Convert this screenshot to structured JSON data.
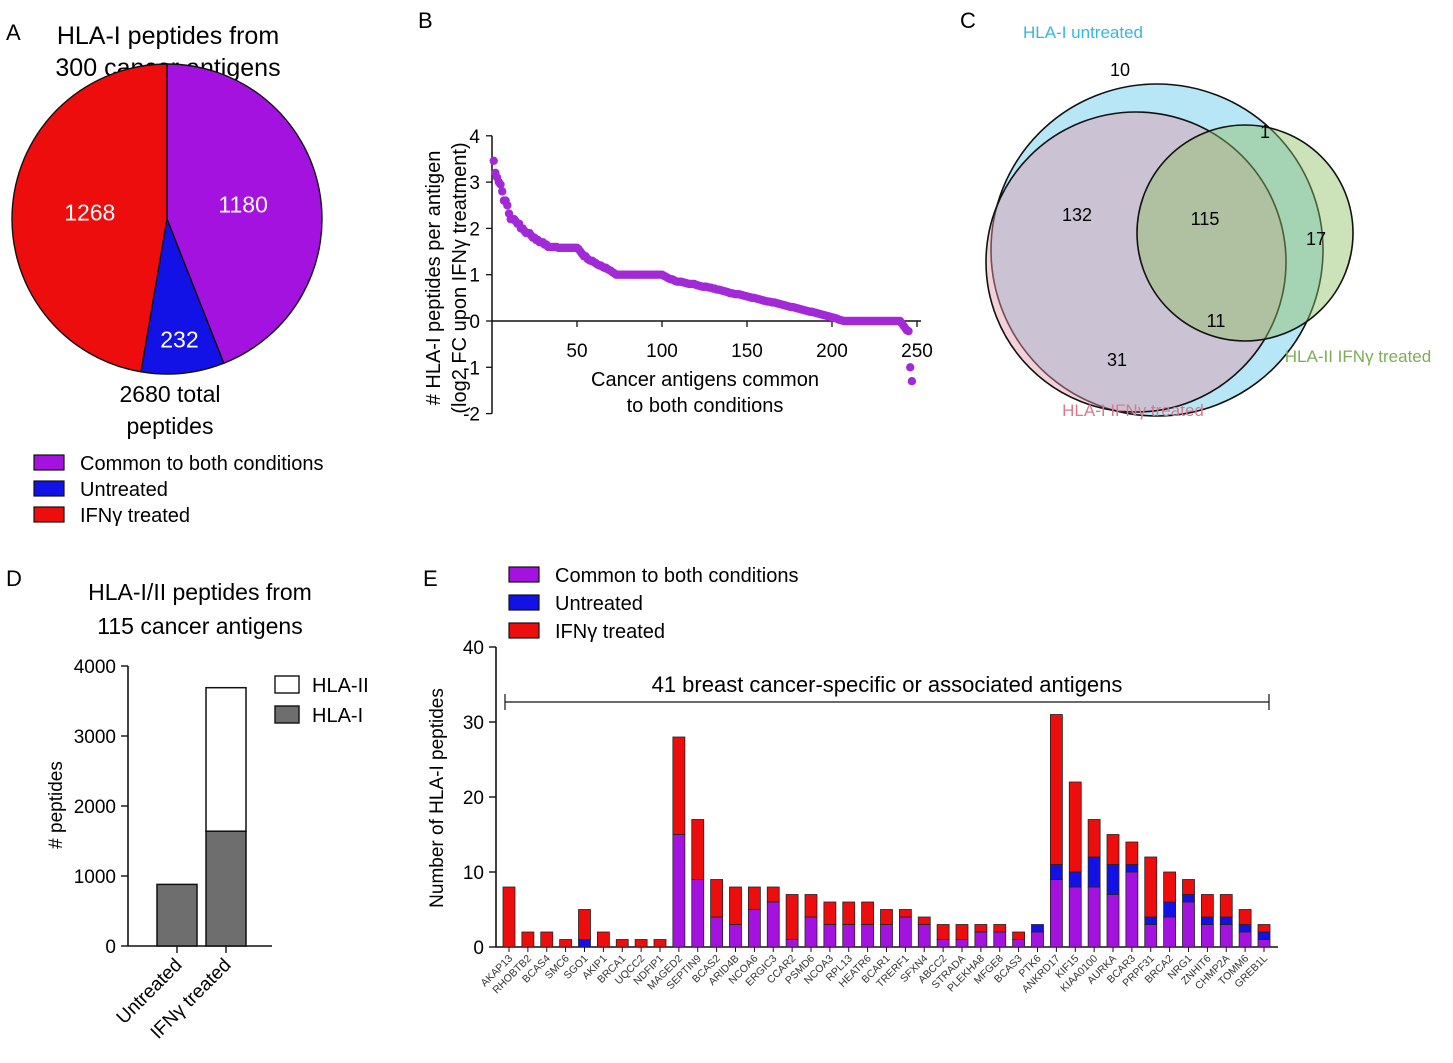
{
  "panels": {
    "a": {
      "letter": "A",
      "title_line1": "HLA-I peptides from",
      "title_line2": "300 cancer antigens",
      "total_line1": "2680 total",
      "total_line2": "peptides"
    },
    "b": {
      "letter": "B"
    },
    "c": {
      "letter": "C"
    },
    "d": {
      "letter": "D",
      "title_line1": "HLA-I/II peptides from",
      "title_line2": "115 cancer antigens"
    },
    "e": {
      "letter": "E",
      "bracket_label": "41 breast cancer-specific or associated antigens"
    }
  },
  "colors": {
    "common": "#a412e0",
    "untreated": "#1212e6",
    "ifn": "#ee0d0d",
    "scatter": "#a22ad6",
    "hla1_untreated": "#3cbfe4",
    "hla1_ifn": "#e48a9c",
    "hla2_ifn": "#86b45c",
    "hla1_bar": "#6e6e6e"
  },
  "chart_data": [
    {
      "id": "A",
      "type": "pie",
      "title": "HLA-I peptides from 300 cancer antigens",
      "slices": [
        {
          "label": "Common to both conditions",
          "value": 1180
        },
        {
          "label": "Untreated",
          "value": 232
        },
        {
          "label": "IFNγ treated",
          "value": 1268
        }
      ],
      "total": 2680,
      "legend": [
        "Common to both conditions",
        "Untreated",
        "IFNγ treated"
      ]
    },
    {
      "id": "B",
      "type": "scatter",
      "ylabel_line1": "# HLA-I peptides per antigen",
      "ylabel_line2": "(log2 FC upon IFNγ treatment)",
      "xlabel_line1": "Cancer antigens common",
      "xlabel_line2": "to both conditions",
      "xlim": [
        0,
        250
      ],
      "ylim": [
        -2,
        4
      ],
      "xticks": [
        50,
        100,
        150,
        200,
        250
      ],
      "yticks": [
        -2,
        -1,
        0,
        1,
        2,
        3,
        4
      ],
      "series_description": "sorted descending log2 fold-change per antigen",
      "points": [
        [
          1,
          3.46
        ],
        [
          2,
          3.2
        ],
        [
          3,
          3.1
        ],
        [
          4,
          3.0
        ],
        [
          5,
          2.95
        ],
        [
          6,
          2.8
        ],
        [
          7,
          2.6
        ],
        [
          8,
          2.6
        ],
        [
          9,
          2.5
        ],
        [
          10,
          2.32
        ],
        [
          11,
          2.2
        ],
        [
          12,
          2.2
        ],
        [
          13,
          2.2
        ],
        [
          14,
          2.15
        ],
        [
          15,
          2.1
        ],
        [
          16,
          2.1
        ],
        [
          17,
          2.0
        ],
        [
          18,
          2.0
        ],
        [
          19,
          1.95
        ],
        [
          20,
          1.9
        ],
        [
          21,
          1.9
        ],
        [
          22,
          1.9
        ],
        [
          23,
          1.85
        ],
        [
          24,
          1.8
        ],
        [
          25,
          1.8
        ],
        [
          26,
          1.75
        ],
        [
          27,
          1.75
        ],
        [
          28,
          1.7
        ],
        [
          29,
          1.7
        ],
        [
          30,
          1.7
        ],
        [
          31,
          1.65
        ],
        [
          32,
          1.65
        ],
        [
          33,
          1.6
        ],
        [
          34,
          1.6
        ],
        [
          35,
          1.6
        ],
        [
          36,
          1.6
        ],
        [
          37,
          1.6
        ],
        [
          38,
          1.6
        ],
        [
          39,
          1.58
        ],
        [
          40,
          1.58
        ],
        [
          41,
          1.58
        ],
        [
          42,
          1.58
        ],
        [
          43,
          1.58
        ],
        [
          44,
          1.58
        ],
        [
          45,
          1.58
        ],
        [
          46,
          1.58
        ],
        [
          47,
          1.58
        ],
        [
          48,
          1.58
        ],
        [
          49,
          1.58
        ],
        [
          50,
          1.58
        ],
        [
          51,
          1.55
        ],
        [
          52,
          1.5
        ],
        [
          53,
          1.45
        ],
        [
          54,
          1.4
        ],
        [
          55,
          1.4
        ],
        [
          56,
          1.35
        ],
        [
          57,
          1.32
        ],
        [
          58,
          1.3
        ],
        [
          59,
          1.3
        ],
        [
          60,
          1.27
        ],
        [
          61,
          1.25
        ],
        [
          62,
          1.22
        ],
        [
          63,
          1.2
        ],
        [
          64,
          1.2
        ],
        [
          65,
          1.17
        ],
        [
          66,
          1.15
        ],
        [
          67,
          1.15
        ],
        [
          68,
          1.12
        ],
        [
          69,
          1.1
        ],
        [
          70,
          1.08
        ],
        [
          71,
          1.05
        ],
        [
          72,
          1.03
        ],
        [
          73,
          1.0
        ],
        [
          74,
          1.0
        ],
        [
          75,
          1.0
        ],
        [
          76,
          1.0
        ],
        [
          77,
          1.0
        ],
        [
          78,
          1.0
        ],
        [
          79,
          1.0
        ],
        [
          80,
          1.0
        ],
        [
          81,
          1.0
        ],
        [
          82,
          1.0
        ],
        [
          83,
          1.0
        ],
        [
          84,
          1.0
        ],
        [
          85,
          1.0
        ],
        [
          86,
          1.0
        ],
        [
          87,
          1.0
        ],
        [
          88,
          1.0
        ],
        [
          89,
          1.0
        ],
        [
          90,
          1.0
        ],
        [
          91,
          1.0
        ],
        [
          92,
          1.0
        ],
        [
          93,
          1.0
        ],
        [
          94,
          1.0
        ],
        [
          95,
          1.0
        ],
        [
          96,
          1.0
        ],
        [
          97,
          1.0
        ],
        [
          98,
          1.0
        ],
        [
          99,
          1.0
        ],
        [
          100,
          1.0
        ],
        [
          101,
          0.98
        ],
        [
          102,
          0.96
        ],
        [
          103,
          0.94
        ],
        [
          104,
          0.92
        ],
        [
          105,
          0.9
        ],
        [
          106,
          0.9
        ],
        [
          107,
          0.88
        ],
        [
          108,
          0.86
        ],
        [
          109,
          0.85
        ],
        [
          110,
          0.85
        ],
        [
          111,
          0.85
        ],
        [
          112,
          0.84
        ],
        [
          113,
          0.83
        ],
        [
          114,
          0.82
        ],
        [
          115,
          0.81
        ],
        [
          116,
          0.8
        ],
        [
          117,
          0.8
        ],
        [
          118,
          0.8
        ],
        [
          119,
          0.8
        ],
        [
          120,
          0.78
        ],
        [
          121,
          0.77
        ],
        [
          122,
          0.76
        ],
        [
          123,
          0.75
        ],
        [
          124,
          0.74
        ],
        [
          125,
          0.74
        ],
        [
          126,
          0.74
        ],
        [
          127,
          0.73
        ],
        [
          128,
          0.72
        ],
        [
          129,
          0.72
        ],
        [
          130,
          0.7
        ],
        [
          131,
          0.7
        ],
        [
          132,
          0.68
        ],
        [
          133,
          0.68
        ],
        [
          134,
          0.67
        ],
        [
          135,
          0.66
        ],
        [
          136,
          0.65
        ],
        [
          137,
          0.64
        ],
        [
          138,
          0.63
        ],
        [
          139,
          0.62
        ],
        [
          140,
          0.6
        ],
        [
          141,
          0.6
        ],
        [
          142,
          0.59
        ],
        [
          143,
          0.58
        ],
        [
          144,
          0.58
        ],
        [
          145,
          0.58
        ],
        [
          146,
          0.57
        ],
        [
          147,
          0.56
        ],
        [
          148,
          0.55
        ],
        [
          149,
          0.54
        ],
        [
          150,
          0.53
        ],
        [
          151,
          0.52
        ],
        [
          152,
          0.51
        ],
        [
          153,
          0.5
        ],
        [
          154,
          0.5
        ],
        [
          155,
          0.49
        ],
        [
          156,
          0.48
        ],
        [
          157,
          0.47
        ],
        [
          158,
          0.46
        ],
        [
          159,
          0.45
        ],
        [
          160,
          0.44
        ],
        [
          161,
          0.43
        ],
        [
          162,
          0.42
        ],
        [
          163,
          0.42
        ],
        [
          164,
          0.41
        ],
        [
          165,
          0.4
        ],
        [
          166,
          0.4
        ],
        [
          167,
          0.39
        ],
        [
          168,
          0.38
        ],
        [
          169,
          0.37
        ],
        [
          170,
          0.36
        ],
        [
          171,
          0.35
        ],
        [
          172,
          0.34
        ],
        [
          173,
          0.33
        ],
        [
          174,
          0.32
        ],
        [
          175,
          0.31
        ],
        [
          176,
          0.3
        ],
        [
          177,
          0.3
        ],
        [
          178,
          0.29
        ],
        [
          179,
          0.28
        ],
        [
          180,
          0.27
        ],
        [
          181,
          0.26
        ],
        [
          182,
          0.25
        ],
        [
          183,
          0.24
        ],
        [
          184,
          0.23
        ],
        [
          185,
          0.22
        ],
        [
          186,
          0.21
        ],
        [
          187,
          0.2
        ],
        [
          188,
          0.2
        ],
        [
          189,
          0.19
        ],
        [
          190,
          0.18
        ],
        [
          191,
          0.17
        ],
        [
          192,
          0.16
        ],
        [
          193,
          0.15
        ],
        [
          194,
          0.14
        ],
        [
          195,
          0.13
        ],
        [
          196,
          0.12
        ],
        [
          197,
          0.11
        ],
        [
          198,
          0.1
        ],
        [
          199,
          0.09
        ],
        [
          200,
          0.08
        ],
        [
          201,
          0.07
        ],
        [
          202,
          0.06
        ],
        [
          203,
          0.05
        ],
        [
          204,
          0.03
        ],
        [
          205,
          0.02
        ],
        [
          206,
          0.01
        ],
        [
          207,
          0.0
        ],
        [
          208,
          0.0
        ],
        [
          209,
          0.0
        ],
        [
          210,
          0.0
        ],
        [
          211,
          0.0
        ],
        [
          212,
          0.0
        ],
        [
          213,
          0.0
        ],
        [
          214,
          0.0
        ],
        [
          215,
          0.0
        ],
        [
          216,
          0.0
        ],
        [
          217,
          0.0
        ],
        [
          218,
          0.0
        ],
        [
          219,
          0.0
        ],
        [
          220,
          0.0
        ],
        [
          221,
          0.0
        ],
        [
          222,
          0.0
        ],
        [
          223,
          0.0
        ],
        [
          224,
          0.0
        ],
        [
          225,
          0.0
        ],
        [
          226,
          0.0
        ],
        [
          227,
          0.0
        ],
        [
          228,
          0.0
        ],
        [
          229,
          0.0
        ],
        [
          230,
          0.0
        ],
        [
          231,
          0.0
        ],
        [
          232,
          0.0
        ],
        [
          233,
          0.0
        ],
        [
          234,
          0.0
        ],
        [
          235,
          0.0
        ],
        [
          236,
          0.0
        ],
        [
          237,
          0.0
        ],
        [
          238,
          0.0
        ],
        [
          239,
          0.0
        ],
        [
          240,
          0.0
        ],
        [
          241,
          -0.05
        ],
        [
          242,
          -0.1
        ],
        [
          243,
          -0.15
        ],
        [
          244,
          -0.2
        ],
        [
          245,
          -0.22
        ],
        [
          246,
          -1.0
        ],
        [
          247,
          -1.3
        ]
      ]
    },
    {
      "id": "C",
      "type": "venn",
      "sets": [
        {
          "label": "HLA-I untreated"
        },
        {
          "label": "HLA-I IFNγ treated"
        },
        {
          "label": "HLA-II IFNγ treated"
        }
      ],
      "regions": {
        "untreated_only": 10,
        "untreated_and_hla2_only": 1,
        "untreated_and_hla1ifn_only": 132,
        "all_three": 115,
        "hla2_only": 17,
        "hla1ifn_and_hla2_only": 11,
        "hla1ifn_only": 31
      }
    },
    {
      "id": "D",
      "type": "bar",
      "title": "HLA-I/II peptides from 115 cancer antigens",
      "ylabel": "# peptides",
      "ylim": [
        0,
        4000
      ],
      "yticks": [
        0,
        1000,
        2000,
        3000,
        4000
      ],
      "categories": [
        "Untreated",
        "IFNγ treated"
      ],
      "stacked": true,
      "series": [
        {
          "name": "HLA-I",
          "values": [
            880,
            1640
          ]
        },
        {
          "name": "HLA-II",
          "values": [
            0,
            2050
          ]
        }
      ],
      "legend": [
        "HLA-II",
        "HLA-I"
      ]
    },
    {
      "id": "E",
      "type": "bar",
      "stacked": true,
      "ylabel": "Number of HLA-I peptides",
      "ylim": [
        0,
        40
      ],
      "yticks": [
        0,
        10,
        20,
        30,
        40
      ],
      "legend": [
        "Common to both conditions",
        "Untreated",
        "IFNγ treated"
      ],
      "categories": [
        "AKAP13",
        "RHOBTB2",
        "BCAS4",
        "SMC6",
        "SGO1",
        "AKIP1",
        "BRCA1",
        "UQCC2",
        "NDFIP1",
        "MAGED2",
        "SEPTIN9",
        "BCAS2",
        "ARID4B",
        "NCOA6",
        "ERGIC3",
        "CCAR2",
        "PSMD6",
        "NCOA3",
        "RPL13",
        "HEATR6",
        "BCAR1",
        "TRERF1",
        "SFXN4",
        "ABCC2",
        "STRADA",
        "PLEKHA8",
        "MFGE8",
        "BCAS3",
        "PTK6",
        "ANKRD17",
        "KIF15",
        "KIAA0100",
        "AURKA",
        "BCAR3",
        "PRPF31",
        "BRCA2",
        "NRG1",
        "ZNHIT6",
        "CHMP2A",
        "TOMM6",
        "GREB1L"
      ],
      "series": [
        {
          "name": "Common to both conditions",
          "values": [
            0,
            0,
            0,
            0,
            0,
            0,
            0,
            0,
            0,
            15,
            9,
            4,
            3,
            5,
            6,
            1,
            4,
            3,
            3,
            3,
            3,
            4,
            3,
            1,
            1,
            2,
            2,
            1,
            2,
            9,
            8,
            8,
            7,
            10,
            3,
            4,
            6,
            3,
            3,
            2,
            1
          ]
        },
        {
          "name": "Untreated",
          "values": [
            0,
            0,
            0,
            0,
            1,
            0,
            0,
            0,
            0,
            0,
            0,
            0,
            0,
            0,
            0,
            0,
            0,
            0,
            0,
            0,
            0,
            0,
            0,
            0,
            0,
            0,
            0,
            0,
            1,
            2,
            2,
            4,
            4,
            1,
            1,
            2,
            1,
            1,
            1,
            1,
            1
          ]
        },
        {
          "name": "IFNγ treated",
          "values": [
            8,
            2,
            2,
            1,
            4,
            2,
            1,
            1,
            1,
            13,
            8,
            5,
            5,
            3,
            2,
            6,
            3,
            3,
            3,
            3,
            2,
            1,
            1,
            2,
            2,
            1,
            1,
            1,
            0,
            20,
            12,
            5,
            4,
            3,
            8,
            4,
            2,
            3,
            3,
            2,
            1
          ]
        }
      ]
    }
  ]
}
